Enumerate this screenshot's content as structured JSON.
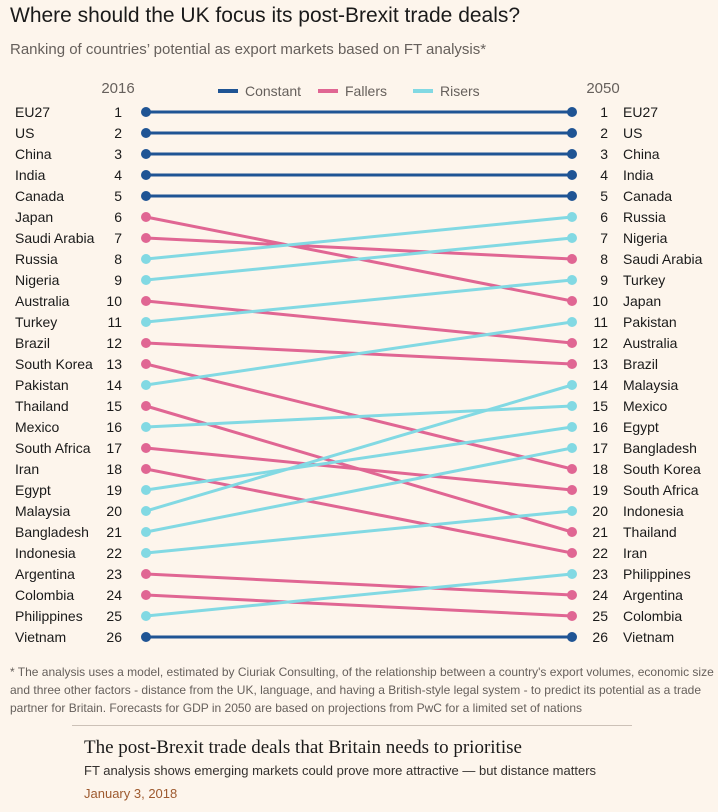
{
  "title": "Where should the UK focus its post-Brexit trade deals?",
  "subtitle": "Ranking of countries’ potential as export markets based on FT analysis*",
  "chart_data": {
    "type": "line",
    "subtype": "slope",
    "left_year": "2016",
    "right_year": "2050",
    "legend": [
      {
        "name": "Constant",
        "color": "#1f5494"
      },
      {
        "name": "Fallers",
        "color": "#e06693"
      },
      {
        "name": "Risers",
        "color": "#82d9e3"
      }
    ],
    "legend_position": "top-center",
    "countries": [
      {
        "name": "EU27",
        "rank_2016": 1,
        "rank_2050": 1,
        "group": "Constant"
      },
      {
        "name": "US",
        "rank_2016": 2,
        "rank_2050": 2,
        "group": "Constant"
      },
      {
        "name": "China",
        "rank_2016": 3,
        "rank_2050": 3,
        "group": "Constant"
      },
      {
        "name": "India",
        "rank_2016": 4,
        "rank_2050": 4,
        "group": "Constant"
      },
      {
        "name": "Canada",
        "rank_2016": 5,
        "rank_2050": 5,
        "group": "Constant"
      },
      {
        "name": "Japan",
        "rank_2016": 6,
        "rank_2050": 10,
        "group": "Fallers"
      },
      {
        "name": "Saudi Arabia",
        "rank_2016": 7,
        "rank_2050": 8,
        "group": "Fallers"
      },
      {
        "name": "Russia",
        "rank_2016": 8,
        "rank_2050": 6,
        "group": "Risers"
      },
      {
        "name": "Nigeria",
        "rank_2016": 9,
        "rank_2050": 7,
        "group": "Risers"
      },
      {
        "name": "Australia",
        "rank_2016": 10,
        "rank_2050": 12,
        "group": "Fallers"
      },
      {
        "name": "Turkey",
        "rank_2016": 11,
        "rank_2050": 9,
        "group": "Risers"
      },
      {
        "name": "Brazil",
        "rank_2016": 12,
        "rank_2050": 13,
        "group": "Fallers"
      },
      {
        "name": "South Korea",
        "rank_2016": 13,
        "rank_2050": 18,
        "group": "Fallers"
      },
      {
        "name": "Pakistan",
        "rank_2016": 14,
        "rank_2050": 11,
        "group": "Risers"
      },
      {
        "name": "Thailand",
        "rank_2016": 15,
        "rank_2050": 21,
        "group": "Fallers"
      },
      {
        "name": "Mexico",
        "rank_2016": 16,
        "rank_2050": 15,
        "group": "Risers"
      },
      {
        "name": "South Africa",
        "rank_2016": 17,
        "rank_2050": 19,
        "group": "Fallers"
      },
      {
        "name": "Iran",
        "rank_2016": 18,
        "rank_2050": 22,
        "group": "Fallers"
      },
      {
        "name": "Egypt",
        "rank_2016": 19,
        "rank_2050": 16,
        "group": "Risers"
      },
      {
        "name": "Malaysia",
        "rank_2016": 20,
        "rank_2050": 14,
        "group": "Risers"
      },
      {
        "name": "Bangladesh",
        "rank_2016": 21,
        "rank_2050": 17,
        "group": "Risers"
      },
      {
        "name": "Indonesia",
        "rank_2016": 22,
        "rank_2050": 20,
        "group": "Risers"
      },
      {
        "name": "Argentina",
        "rank_2016": 23,
        "rank_2050": 24,
        "group": "Fallers"
      },
      {
        "name": "Colombia",
        "rank_2016": 24,
        "rank_2050": 25,
        "group": "Fallers"
      },
      {
        "name": "Philippines",
        "rank_2016": 25,
        "rank_2050": 23,
        "group": "Risers"
      },
      {
        "name": "Vietnam",
        "rank_2016": 26,
        "rank_2050": 26,
        "group": "Constant"
      }
    ]
  },
  "footnote": "* The analysis uses a model, estimated by Ciuriak Consulting, of the relationship between a country's export volumes, economic size and three other factors - distance from the UK, language, and having a British-style legal system - to predict its potential as a trade partner for Britain. Forecasts for GDP in 2050 are based on projections from PwC for a limited set of nations",
  "card": {
    "headline": "The post-Brexit trade deals that Britain needs to prioritise",
    "standfirst": "FT analysis shows emerging markets could prove more attractive — but distance matters",
    "date": "January 3, 2018"
  }
}
